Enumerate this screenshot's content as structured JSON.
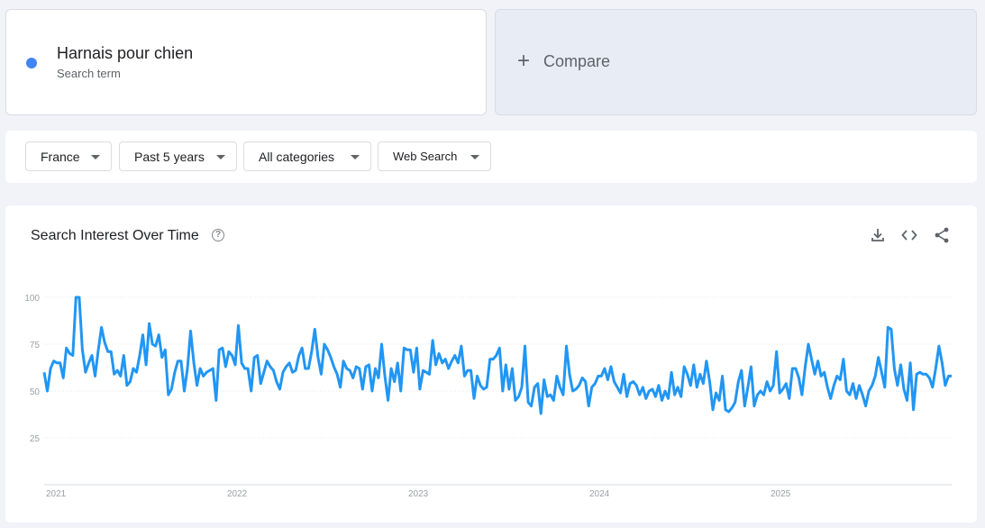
{
  "search_term": {
    "name": "Harnais pour chien",
    "subtitle": "Search term",
    "color": "#4285f4"
  },
  "compare": {
    "plus": "+",
    "label": "Compare"
  },
  "filters": {
    "region": "France",
    "period": "Past 5 years",
    "category": "All categories",
    "search_type": "Web Search"
  },
  "chart_panel": {
    "title": "Search Interest Over Time",
    "icons": [
      "help-icon",
      "download-icon",
      "embed-icon",
      "share-icon"
    ]
  },
  "chart_data": {
    "type": "line",
    "title": "Search Interest Over Time",
    "xlabel": "",
    "ylabel": "",
    "ylim": [
      0,
      100
    ],
    "yticks": [
      25,
      50,
      75,
      100
    ],
    "x_tick_labels": [
      "2021",
      "2022",
      "2023",
      "2024",
      "2025"
    ],
    "grid": true,
    "legend": "none",
    "line_color": "#2196f3",
    "series": [
      {
        "name": "Harnais pour chien",
        "values": [
          60,
          50,
          62,
          66,
          65,
          65,
          57,
          73,
          70,
          69,
          100,
          100,
          72,
          60,
          65,
          69,
          58,
          72,
          84,
          76,
          71,
          71,
          59,
          61,
          58,
          69,
          53,
          55,
          62,
          60,
          69,
          80,
          64,
          86,
          75,
          74,
          80,
          68,
          72,
          48,
          51,
          60,
          66,
          66,
          50,
          62,
          82,
          65,
          53,
          62,
          58,
          60,
          61,
          62,
          45,
          72,
          73,
          63,
          71,
          69,
          64,
          85,
          65,
          62,
          62,
          50,
          68,
          69,
          54,
          60,
          66,
          63,
          61,
          55,
          51,
          60,
          63,
          65,
          60,
          61,
          69,
          73,
          62,
          62,
          71,
          83,
          68,
          59,
          75,
          72,
          68,
          63,
          59,
          52,
          66,
          62,
          61,
          57,
          63,
          62,
          51,
          63,
          64,
          50,
          62,
          57,
          75,
          58,
          45,
          62,
          55,
          65,
          50,
          73,
          72,
          72,
          60,
          73,
          51,
          61,
          60,
          59,
          77,
          64,
          70,
          65,
          67,
          62,
          66,
          69,
          65,
          74,
          58,
          61,
          61,
          46,
          58,
          53,
          51,
          52,
          67,
          67,
          69,
          73,
          50,
          64,
          51,
          62,
          45,
          47,
          52,
          74,
          44,
          42,
          52,
          54,
          38,
          56,
          47,
          48,
          45,
          58,
          52,
          48,
          74,
          59,
          50,
          51,
          53,
          57,
          55,
          42,
          52,
          54,
          58,
          58,
          62,
          56,
          63,
          55,
          52,
          49,
          59,
          47,
          54,
          55,
          53,
          48,
          52,
          46,
          50,
          51,
          47,
          53,
          45,
          50,
          46,
          60,
          48,
          52,
          47,
          63,
          59,
          53,
          64,
          52,
          59,
          54,
          66,
          55,
          40,
          49,
          45,
          58,
          40,
          39,
          41,
          44,
          55,
          61,
          42,
          52,
          63,
          42,
          48,
          50,
          48,
          55,
          50,
          53,
          71,
          49,
          51,
          54,
          46,
          62,
          62,
          57,
          48,
          63,
          75,
          67,
          59,
          66,
          58,
          60,
          52,
          46,
          53,
          58,
          56,
          67,
          50,
          48,
          54,
          46,
          53,
          48,
          42,
          50,
          53,
          58,
          68,
          60,
          52,
          84,
          83,
          62,
          53,
          64,
          51,
          45,
          65,
          40,
          59,
          60,
          59,
          59,
          57,
          52,
          62,
          74,
          65,
          53,
          58,
          58
        ]
      }
    ]
  }
}
